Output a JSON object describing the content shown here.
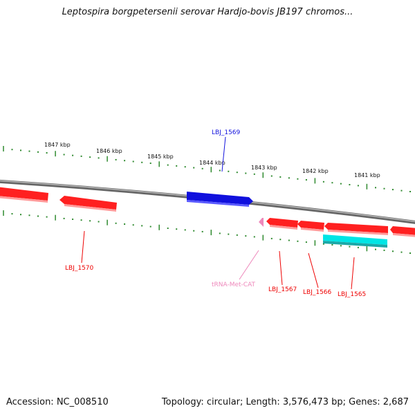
{
  "title": "Leptospira borgpetersenii serovar Hardjo-bovis JB197 chromos...",
  "footer": {
    "accession": "Accession: NC_008510",
    "summary": "Topology: circular; Length: 3,576,473 bp; Genes: 2,687"
  },
  "scale_labels": [
    "1847 kbp",
    "1846 kbp",
    "1845 kbp",
    "1844 kbp",
    "1843 kbp",
    "1842 kbp",
    "1841 kbp"
  ],
  "gene_labels": {
    "lbj_1569": "LBJ_1569",
    "lbj_1570": "LBJ_1570",
    "trna_met": "tRNA-Met-CAT",
    "lbj_1567": "LBJ_1567",
    "lbj_1566": "LBJ_1566",
    "lbj_1565": "LBJ_1565"
  },
  "colors": {
    "forward_gene": "#1010dd",
    "reverse_gene": "#ee0000",
    "highlight_gene": "#00e5e5",
    "trna": "#ee88bb",
    "backbone": "#8a8a8a",
    "tick": "#2f8a2f"
  }
}
